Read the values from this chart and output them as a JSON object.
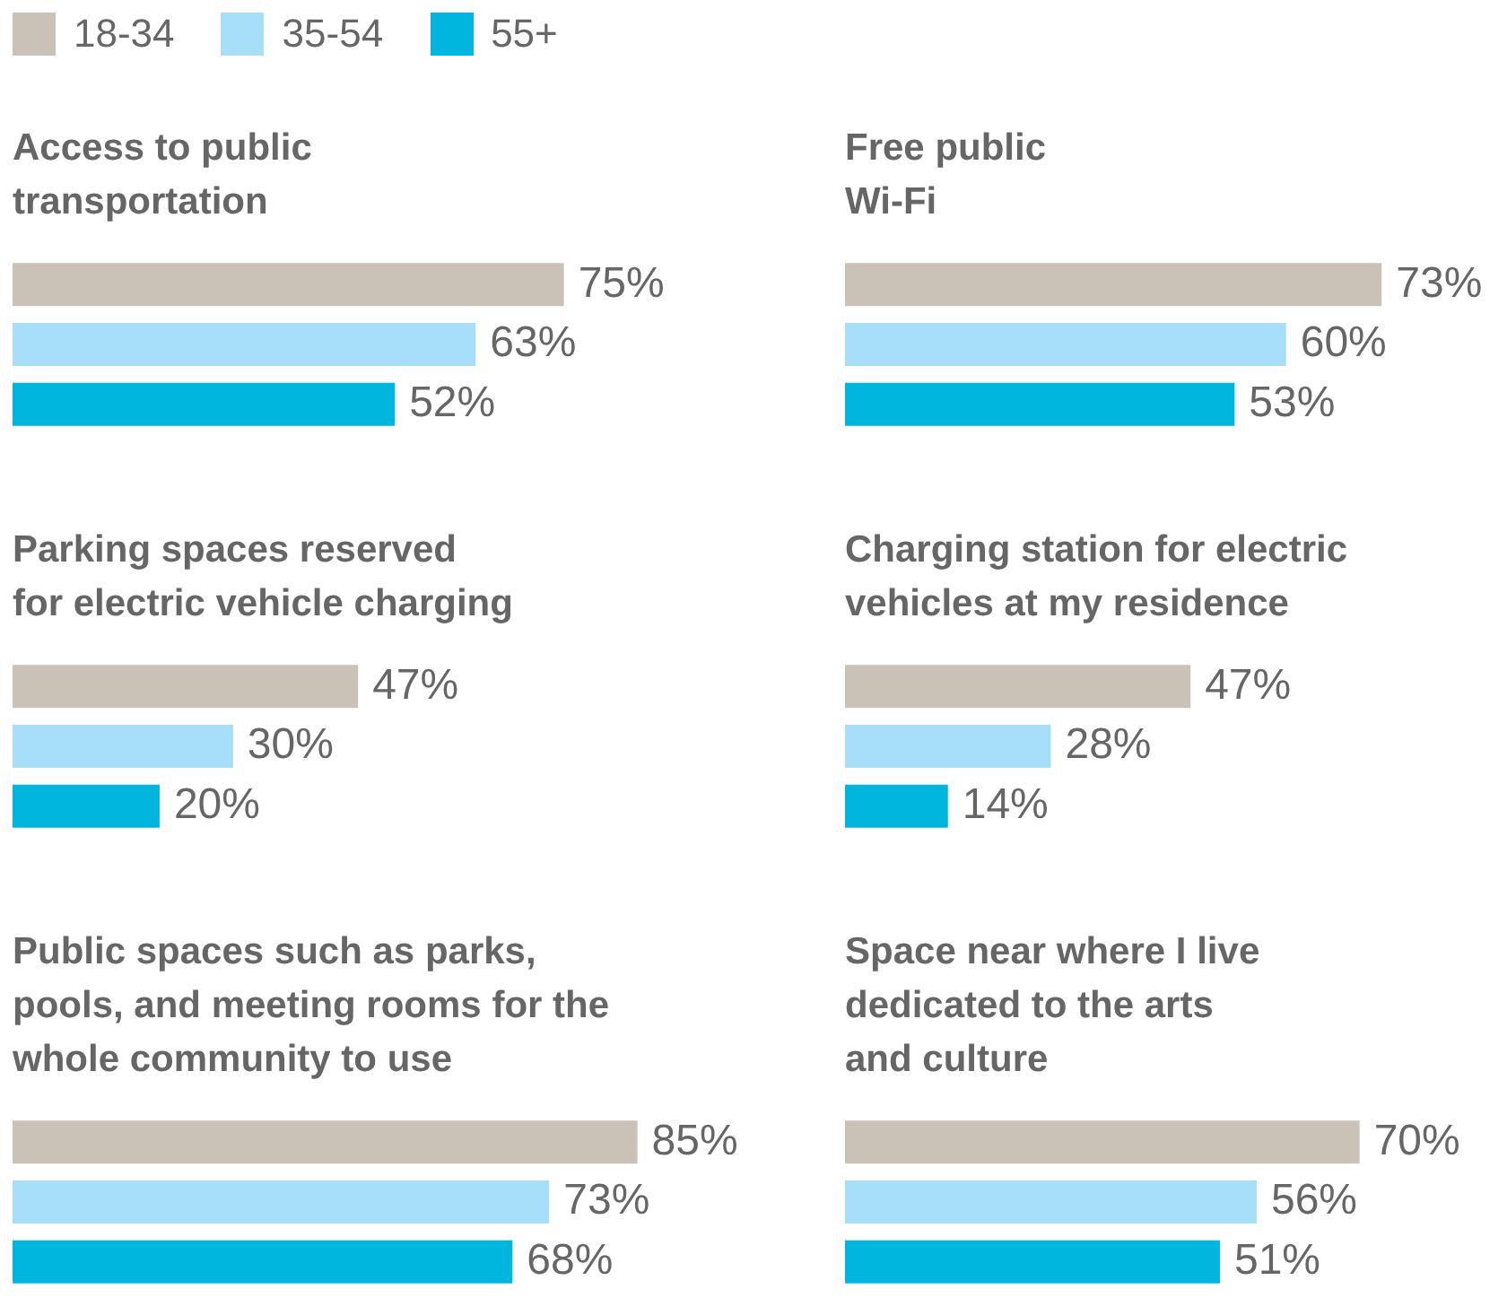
{
  "chart_data": [
    {
      "type": "bar",
      "orientation": "horizontal",
      "title": "Access to public\ntransportation",
      "categories": [
        null
      ],
      "tick_labels": false,
      "legend": "top left",
      "series": [
        {
          "name": "18-34",
          "color": "#cbc2b7",
          "values": [
            75
          ],
          "value_labels": [
            "75%"
          ]
        },
        {
          "name": "35-54",
          "color": "#a7dff9",
          "values": [
            63
          ],
          "value_labels": [
            "63%"
          ]
        },
        {
          "name": "55+",
          "color": "#00b6de",
          "values": [
            52
          ],
          "value_labels": [
            "52%"
          ]
        }
      ]
    },
    {
      "type": "bar",
      "orientation": "horizontal",
      "title": "Free public\nWi-Fi",
      "categories": [
        null
      ],
      "tick_labels": false,
      "series": [
        {
          "color": "#cbc2b7",
          "values": [
            73
          ],
          "value_labels": [
            "73%"
          ]
        },
        {
          "color": "#a7dff9",
          "values": [
            60
          ],
          "value_labels": [
            "60%"
          ]
        },
        {
          "color": "#00b6de",
          "values": [
            53
          ],
          "value_labels": [
            "53%"
          ]
        }
      ]
    },
    {
      "type": "bar",
      "orientation": "horizontal",
      "title": "Parking spaces reserved\nfor electric vehicle charging",
      "categories": [
        null
      ],
      "tick_labels": false,
      "series": [
        {
          "color": "#cbc2b7",
          "values": [
            47
          ],
          "value_labels": [
            "47%"
          ]
        },
        {
          "color": "#a7dff9",
          "values": [
            30
          ],
          "value_labels": [
            "30%"
          ]
        },
        {
          "color": "#00b6de",
          "values": [
            20
          ],
          "value_labels": [
            "20%"
          ]
        }
      ]
    },
    {
      "type": "bar",
      "orientation": "horizontal",
      "title": "Charging station for electric\nvehicles at my residence",
      "categories": [
        null
      ],
      "tick_labels": false,
      "series": [
        {
          "color": "#cbc2b7",
          "values": [
            47
          ],
          "value_labels": [
            "47%"
          ]
        },
        {
          "color": "#a7dff9",
          "values": [
            28
          ],
          "value_labels": [
            "28%"
          ]
        },
        {
          "color": "#00b6de",
          "values": [
            14
          ],
          "value_labels": [
            "14%"
          ]
        }
      ]
    },
    {
      "type": "bar",
      "orientation": "horizontal",
      "title": "Public spaces such as parks,\npools, and meeting rooms for the\nwhole community to use",
      "categories": [
        null
      ],
      "tick_labels": false,
      "series": [
        {
          "color": "#cbc2b7",
          "values": [
            85
          ],
          "value_labels": [
            "85%"
          ]
        },
        {
          "color": "#a7dff9",
          "values": [
            73
          ],
          "value_labels": [
            "73%"
          ]
        },
        {
          "color": "#00b6de",
          "values": [
            68
          ],
          "value_labels": [
            "68%"
          ]
        }
      ]
    },
    {
      "type": "bar",
      "orientation": "horizontal",
      "title": "Space near where I live\ndedicated to the arts\nand culture",
      "categories": [
        null
      ],
      "tick_labels": false,
      "series": [
        {
          "color": "#cbc2b7",
          "values": [
            70
          ],
          "value_labels": [
            "70%"
          ]
        },
        {
          "color": "#a7dff9",
          "values": [
            56
          ],
          "value_labels": [
            "56%"
          ]
        },
        {
          "color": "#00b6de",
          "values": [
            51
          ],
          "value_labels": [
            "51%"
          ]
        }
      ]
    }
  ]
}
